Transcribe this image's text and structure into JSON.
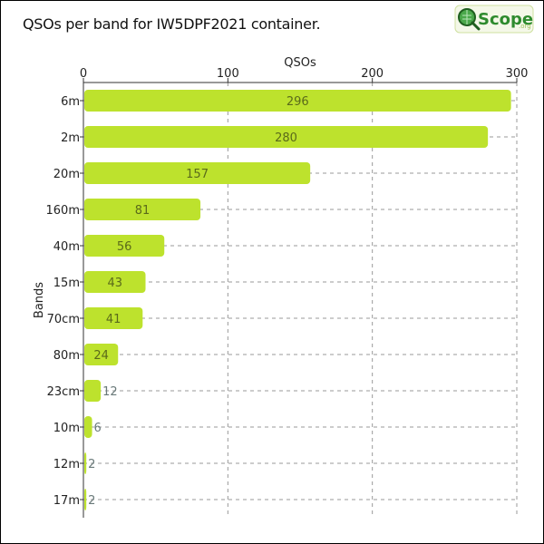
{
  "title": "QSOs per band for IW5DPF2021 container.",
  "logo": {
    "text": "Scope",
    "suffix": ".org",
    "icon": "qscope-magnifier-icon",
    "accent": "#2e8b2e"
  },
  "colors": {
    "bar": "#bde22d",
    "grid": "#999999",
    "axis": "#333333"
  },
  "chart_data": {
    "type": "bar",
    "orientation": "horizontal",
    "xlabel": "QSOs",
    "ylabel": "Bands",
    "xlim": [
      0,
      300
    ],
    "xticks": [
      0,
      100,
      200,
      300
    ],
    "grid": true,
    "categories": [
      "6m",
      "2m",
      "20m",
      "160m",
      "40m",
      "15m",
      "70cm",
      "80m",
      "23cm",
      "10m",
      "12m",
      "17m"
    ],
    "values": [
      296,
      280,
      157,
      81,
      56,
      43,
      41,
      24,
      12,
      6,
      2,
      2
    ]
  }
}
